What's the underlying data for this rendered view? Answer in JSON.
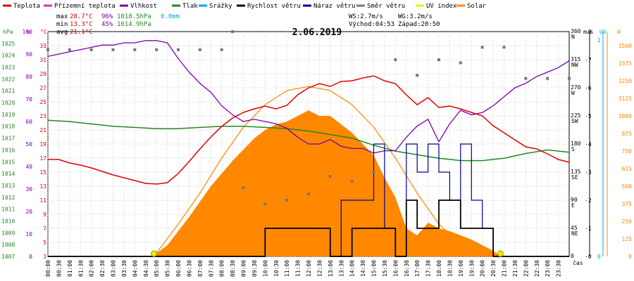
{
  "chart_data": {
    "type": "line",
    "date": "2.06.2019",
    "legend": [
      {
        "label": "Teplota",
        "color": "#e00000"
      },
      {
        "label": "Přízemní teplota",
        "color": "#cc33cc"
      },
      {
        "label": "Vlhkost",
        "color": "#7700aa"
      },
      {
        "label": "Tlak",
        "color": "#228822"
      },
      {
        "label": "Srážky",
        "color": "#00aadd"
      },
      {
        "label": "Rychlost větru",
        "color": "#000000"
      },
      {
        "label": "Náraz větru",
        "color": "#000099"
      },
      {
        "label": "Směr větru",
        "color": "#777777"
      },
      {
        "label": "UV index",
        "color": "#eeee00"
      },
      {
        "label": "Solar",
        "color": "#ff8800"
      }
    ],
    "stats": {
      "max_label": "max",
      "max_temp": "28.7°C",
      "max_hum": "96%",
      "max_press": "1018.5hPa",
      "rain": "0.0mm",
      "min_label": "min",
      "min_temp": "13.3°C",
      "min_hum": "45%",
      "min_press": "1014.9hPa",
      "avg_label": "avg",
      "avg_temp": "21.1°C"
    },
    "sun": {
      "ws": "WS:2.7m/s",
      "wg": "WG:3.2m/s",
      "sunrise": "Východ:04:53",
      "sunset": "Západ:20:50"
    },
    "axes": {
      "hpa_title": "hPa",
      "pct_title": "%",
      "c_title": "°C",
      "ms_title": "m/s",
      "uv_title": "UV",
      "w_title": "W",
      "hpa_ticks": [
        "1007",
        "1008",
        "1009",
        "1010",
        "1011",
        "1012",
        "1013",
        "1014",
        "1015",
        "1016",
        "1017",
        "1018",
        "1019",
        "1020",
        "1021",
        "1022",
        "1023",
        "1024",
        "1025"
      ],
      "pct_ticks": [
        "0",
        "10",
        "20",
        "30",
        "40",
        "50",
        "60",
        "70",
        "80",
        "90",
        "100"
      ],
      "c_ticks": [
        "3",
        "5",
        "7",
        "9",
        "11",
        "13",
        "15",
        "17",
        "19",
        "21",
        "23",
        "25",
        "27",
        "29",
        "31",
        "33"
      ],
      "dir_ticks": [
        "0",
        "45",
        "90",
        "135",
        "180",
        "225",
        "270",
        "315",
        "360"
      ],
      "dir_names": [
        "",
        "NE",
        "E",
        "SE",
        "S",
        "SW",
        "W",
        "NW",
        "N"
      ],
      "ms_ticks": [
        "0",
        "1",
        "2",
        "3",
        "4",
        "5",
        "6",
        "7",
        "8"
      ],
      "uv_ticks": [
        "0",
        "1"
      ],
      "w_ticks": [
        "0",
        "125",
        "250",
        "375",
        "500",
        "625",
        "750",
        "875",
        "1000",
        "1125",
        "1250",
        "1375",
        "1500"
      ],
      "x_label": "čas",
      "time_ticks": [
        "00:00",
        "00:30",
        "01:00",
        "01:30",
        "02:00",
        "02:30",
        "03:00",
        "03:30",
        "04:00",
        "04:30",
        "05:00",
        "05:30",
        "06:00",
        "06:30",
        "07:00",
        "07:30",
        "08:00",
        "08:30",
        "09:00",
        "09:30",
        "10:00",
        "10:30",
        "11:00",
        "11:30",
        "12:00",
        "12:30",
        "13:00",
        "13:30",
        "14:00",
        "14:30",
        "15:00",
        "15:30",
        "16:00",
        "16:30",
        "17:00",
        "17:30",
        "18:00",
        "18:30",
        "19:00",
        "19:30",
        "20:00",
        "20:30",
        "21:00",
        "21:30",
        "22:00",
        "22:30",
        "23:00",
        "23:30"
      ]
    },
    "ranges": {
      "temp_c": [
        3,
        35
      ],
      "humidity_pct": [
        0,
        100
      ],
      "pressure_hpa": [
        1007,
        1026
      ],
      "wind_dir_deg": [
        0,
        360
      ],
      "wind_ms": [
        0,
        8
      ],
      "solar_w": [
        0,
        1600
      ]
    },
    "series": {
      "temperature_c": [
        [
          0,
          16.8
        ],
        [
          0.5,
          16.8
        ],
        [
          1,
          16.3
        ],
        [
          1.5,
          16.0
        ],
        [
          2,
          15.6
        ],
        [
          2.5,
          15.1
        ],
        [
          3,
          14.6
        ],
        [
          3.5,
          14.2
        ],
        [
          4,
          13.8
        ],
        [
          4.5,
          13.4
        ],
        [
          5,
          13.3
        ],
        [
          5.5,
          13.5
        ],
        [
          6,
          14.8
        ],
        [
          6.5,
          16.5
        ],
        [
          7,
          18.3
        ],
        [
          7.5,
          20.0
        ],
        [
          8,
          21.5
        ],
        [
          8.5,
          22.7
        ],
        [
          9,
          23.5
        ],
        [
          9.5,
          24.0
        ],
        [
          10,
          24.4
        ],
        [
          10.5,
          24.0
        ],
        [
          11,
          24.5
        ],
        [
          11.5,
          26.0
        ],
        [
          12,
          27.0
        ],
        [
          12.5,
          27.6
        ],
        [
          13,
          27.2
        ],
        [
          13.5,
          27.9
        ],
        [
          14,
          28.0
        ],
        [
          14.5,
          28.4
        ],
        [
          15,
          28.7
        ],
        [
          15.5,
          28.0
        ],
        [
          16,
          27.6
        ],
        [
          16.5,
          26.0
        ],
        [
          17,
          24.6
        ],
        [
          17.5,
          25.6
        ],
        [
          18,
          24.2
        ],
        [
          18.5,
          24.4
        ],
        [
          19,
          24.0
        ],
        [
          19.5,
          23.5
        ],
        [
          20,
          23.0
        ],
        [
          20.5,
          21.6
        ],
        [
          21,
          20.6
        ],
        [
          21.5,
          19.6
        ],
        [
          22,
          18.6
        ],
        [
          22.5,
          18.3
        ],
        [
          23,
          17.6
        ],
        [
          23.5,
          16.8
        ],
        [
          24,
          16.4
        ]
      ],
      "humidity_pct": [
        [
          0,
          89
        ],
        [
          0.5,
          90
        ],
        [
          1,
          91
        ],
        [
          1.5,
          92
        ],
        [
          2,
          93
        ],
        [
          2.5,
          94
        ],
        [
          3,
          94
        ],
        [
          3.5,
          95
        ],
        [
          4,
          95
        ],
        [
          4.5,
          96
        ],
        [
          5,
          96
        ],
        [
          5.5,
          95
        ],
        [
          6,
          88
        ],
        [
          6.5,
          82
        ],
        [
          7,
          77
        ],
        [
          7.5,
          73
        ],
        [
          8,
          67
        ],
        [
          8.5,
          63
        ],
        [
          9,
          60
        ],
        [
          9.5,
          61
        ],
        [
          10,
          60
        ],
        [
          10.5,
          59
        ],
        [
          11,
          57
        ],
        [
          11.5,
          53
        ],
        [
          12,
          50
        ],
        [
          12.5,
          50
        ],
        [
          13,
          52
        ],
        [
          13.5,
          49
        ],
        [
          14,
          48
        ],
        [
          14.5,
          48
        ],
        [
          15,
          46
        ],
        [
          15.5,
          47
        ],
        [
          16,
          47
        ],
        [
          16.5,
          53
        ],
        [
          17,
          58
        ],
        [
          17.5,
          61
        ],
        [
          18,
          51
        ],
        [
          18.5,
          59
        ],
        [
          19,
          65
        ],
        [
          19.5,
          63
        ],
        [
          20,
          64
        ],
        [
          20.5,
          67
        ],
        [
          21,
          71
        ],
        [
          21.5,
          75
        ],
        [
          22,
          77
        ],
        [
          22.5,
          80
        ],
        [
          23,
          82
        ],
        [
          23.5,
          84
        ],
        [
          24,
          87
        ]
      ],
      "pressure_hpa": [
        [
          0,
          1018.5
        ],
        [
          1,
          1018.4
        ],
        [
          2,
          1018.2
        ],
        [
          3,
          1018.0
        ],
        [
          4,
          1017.9
        ],
        [
          5,
          1017.8
        ],
        [
          6,
          1017.8
        ],
        [
          7,
          1017.9
        ],
        [
          8,
          1018.0
        ],
        [
          9,
          1018.0
        ],
        [
          10,
          1017.9
        ],
        [
          11,
          1017.8
        ],
        [
          12,
          1017.6
        ],
        [
          13,
          1017.3
        ],
        [
          14,
          1017.0
        ],
        [
          15,
          1016.4
        ],
        [
          16,
          1015.9
        ],
        [
          17,
          1015.6
        ],
        [
          18,
          1015.3
        ],
        [
          19,
          1015.1
        ],
        [
          20,
          1015.1
        ],
        [
          21,
          1015.3
        ],
        [
          22,
          1015.7
        ],
        [
          23,
          1016.0
        ],
        [
          24,
          1015.8
        ]
      ],
      "wind_dir_deg": [
        [
          0,
          331
        ],
        [
          1,
          331
        ],
        [
          2,
          331
        ],
        [
          3,
          331
        ],
        [
          4,
          331
        ],
        [
          5,
          331
        ],
        [
          6,
          331
        ],
        [
          7,
          331
        ],
        [
          8,
          331
        ],
        [
          8.5,
          360
        ],
        [
          9,
          110
        ],
        [
          10,
          84
        ],
        [
          11,
          90
        ],
        [
          12,
          100
        ],
        [
          13,
          128
        ],
        [
          14,
          120
        ],
        [
          15,
          135
        ],
        [
          16,
          315
        ],
        [
          17,
          290
        ],
        [
          18,
          315
        ],
        [
          19,
          310
        ],
        [
          20,
          335
        ],
        [
          21,
          335
        ],
        [
          22,
          285
        ],
        [
          23,
          285
        ],
        [
          24,
          285
        ]
      ],
      "wind_speed_ms": [
        [
          0,
          0
        ],
        [
          9.5,
          0
        ],
        [
          10,
          1
        ],
        [
          11,
          1
        ],
        [
          12,
          1
        ],
        [
          13,
          0
        ],
        [
          14,
          1
        ],
        [
          15,
          1
        ],
        [
          16,
          0
        ],
        [
          16.5,
          2
        ],
        [
          17,
          1
        ],
        [
          18,
          2
        ],
        [
          19,
          1
        ],
        [
          20,
          1
        ],
        [
          20.5,
          0
        ],
        [
          21,
          0
        ],
        [
          24,
          0
        ]
      ],
      "wind_gust_ms": [
        [
          0,
          0
        ],
        [
          9.5,
          0
        ],
        [
          10,
          1
        ],
        [
          11,
          1
        ],
        [
          12,
          1
        ],
        [
          13,
          0
        ],
        [
          13.5,
          2
        ],
        [
          14,
          2
        ],
        [
          15,
          4
        ],
        [
          15.5,
          1
        ],
        [
          16,
          0
        ],
        [
          16.5,
          4
        ],
        [
          17,
          3
        ],
        [
          17.5,
          4
        ],
        [
          18,
          3
        ],
        [
          18.5,
          2
        ],
        [
          19,
          4
        ],
        [
          19.5,
          2
        ],
        [
          20,
          1
        ],
        [
          20.5,
          0
        ],
        [
          21,
          0
        ],
        [
          24,
          0
        ]
      ],
      "solar_w": [
        [
          4.8,
          0
        ],
        [
          5.5,
          80
        ],
        [
          6,
          180
        ],
        [
          6.5,
          280
        ],
        [
          7,
          390
        ],
        [
          7.5,
          500
        ],
        [
          8,
          590
        ],
        [
          8.5,
          680
        ],
        [
          9,
          760
        ],
        [
          9.5,
          840
        ],
        [
          10,
          900
        ],
        [
          10.5,
          940
        ],
        [
          11,
          960
        ],
        [
          11.5,
          1000
        ],
        [
          12,
          1040
        ],
        [
          12.5,
          1000
        ],
        [
          13,
          1000
        ],
        [
          13.5,
          940
        ],
        [
          14,
          880
        ],
        [
          14.5,
          800
        ],
        [
          15,
          720
        ],
        [
          15.5,
          560
        ],
        [
          16,
          420
        ],
        [
          16.5,
          200
        ],
        [
          17,
          150
        ],
        [
          17.5,
          240
        ],
        [
          18,
          200
        ],
        [
          18.5,
          180
        ],
        [
          19,
          150
        ],
        [
          19.5,
          120
        ],
        [
          20,
          80
        ],
        [
          20.5,
          40
        ],
        [
          20.85,
          0
        ]
      ],
      "solar_max_w": [
        [
          4.88,
          0
        ],
        [
          6,
          230
        ],
        [
          7,
          450
        ],
        [
          8,
          700
        ],
        [
          9,
          920
        ],
        [
          10,
          1080
        ],
        [
          11,
          1180
        ],
        [
          12,
          1210
        ],
        [
          13,
          1180
        ],
        [
          14,
          1080
        ],
        [
          15,
          920
        ],
        [
          16,
          700
        ],
        [
          17,
          450
        ],
        [
          18,
          230
        ],
        [
          19,
          90
        ],
        [
          20,
          20
        ],
        [
          20.83,
          0
        ]
      ],
      "uv_index": [
        [
          0,
          0
        ],
        [
          24,
          0
        ]
      ]
    }
  }
}
